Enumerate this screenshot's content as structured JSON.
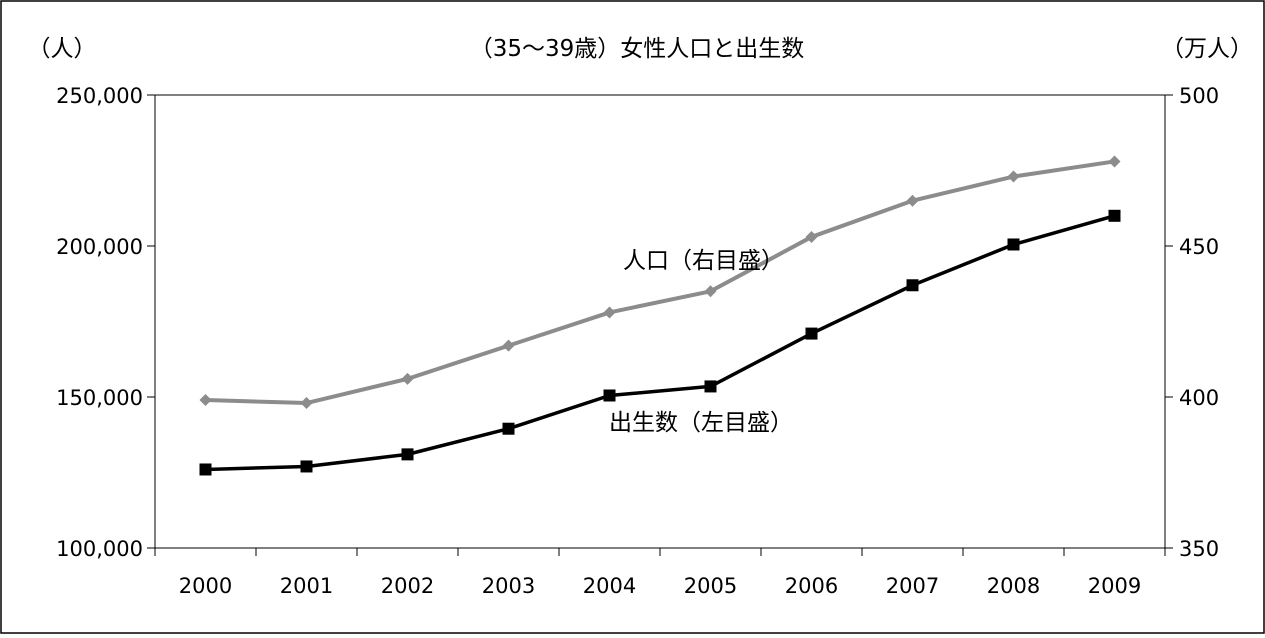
{
  "chart_data": {
    "type": "line",
    "title": "（35〜39歳）女性人口と出生数",
    "left_axis_unit": "（人）",
    "right_axis_unit": "（万人）",
    "categories": [
      "2000",
      "2001",
      "2002",
      "2003",
      "2004",
      "2005",
      "2006",
      "2007",
      "2008",
      "2009"
    ],
    "left_axis": {
      "range": [
        100000,
        250000
      ],
      "ticks": [
        100000,
        150000,
        200000,
        250000
      ],
      "tick_labels": [
        "100,000",
        "150,000",
        "200,000",
        "250,000"
      ]
    },
    "right_axis": {
      "range": [
        350,
        500
      ],
      "ticks": [
        350,
        400,
        450,
        500
      ],
      "tick_labels": [
        "350",
        "400",
        "450",
        "500"
      ]
    },
    "grid": false,
    "legend": "none",
    "series": [
      {
        "name": "人口（右目盛）",
        "axis": "right",
        "marker": "diamond",
        "color": "#8c8c8c",
        "values": [
          399,
          398,
          406,
          417,
          428,
          435,
          453,
          465,
          473,
          478
        ]
      },
      {
        "name": "出生数（左目盛）",
        "axis": "left",
        "marker": "square",
        "color": "#000000",
        "values": [
          126000,
          127000,
          131000,
          139500,
          150500,
          153500,
          171000,
          187000,
          200500,
          210000
        ]
      }
    ]
  }
}
